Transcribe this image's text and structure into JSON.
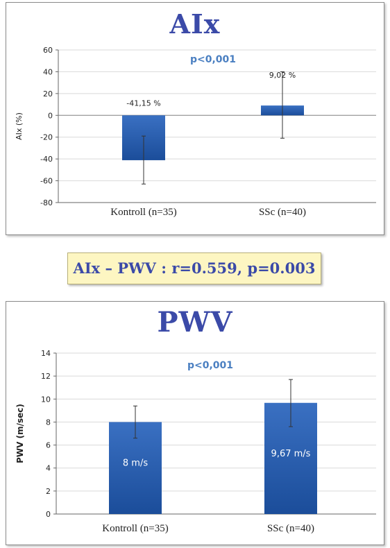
{
  "correlation_text": "AIx – PWV : r=0.559, p=0.003",
  "colors": {
    "title": "#3b4aa8",
    "pvalue": "#4a7fc1",
    "bar_top": "#3a70c2",
    "bar_bottom": "#1b4d9a",
    "grid": "#d9d9d9",
    "box_fill": "#fdf6c2"
  },
  "chart_data": [
    {
      "type": "bar",
      "title": "AIx",
      "ylabel": "AIx (%)",
      "xlabel": "",
      "categories": [
        "Kontroll (n=35)",
        "SSc (n=40)"
      ],
      "values": [
        -41.15,
        9.02
      ],
      "error_low": [
        -63,
        -21
      ],
      "error_high": [
        -19,
        40
      ],
      "data_labels": [
        "-41,15 %",
        "9,02 %"
      ],
      "ylim": [
        -80,
        60
      ],
      "yticks": [
        60,
        40,
        20,
        0,
        -20,
        -40,
        -60,
        -80
      ],
      "annotation": "p<0,001",
      "grid": true
    },
    {
      "type": "bar",
      "title": "PWV",
      "ylabel": "PWV (m/sec)",
      "xlabel": "",
      "categories": [
        "Kontroll (n=35)",
        "SSc (n=40)"
      ],
      "values": [
        8,
        9.67
      ],
      "error_low": [
        6.6,
        7.6
      ],
      "error_high": [
        9.4,
        11.7
      ],
      "data_labels": [
        "8 m/s",
        "9,67 m/s"
      ],
      "ylim": [
        0,
        14
      ],
      "yticks": [
        14,
        12,
        10,
        8,
        6,
        4,
        2,
        0
      ],
      "annotation": "p<0,001",
      "grid": true
    }
  ]
}
